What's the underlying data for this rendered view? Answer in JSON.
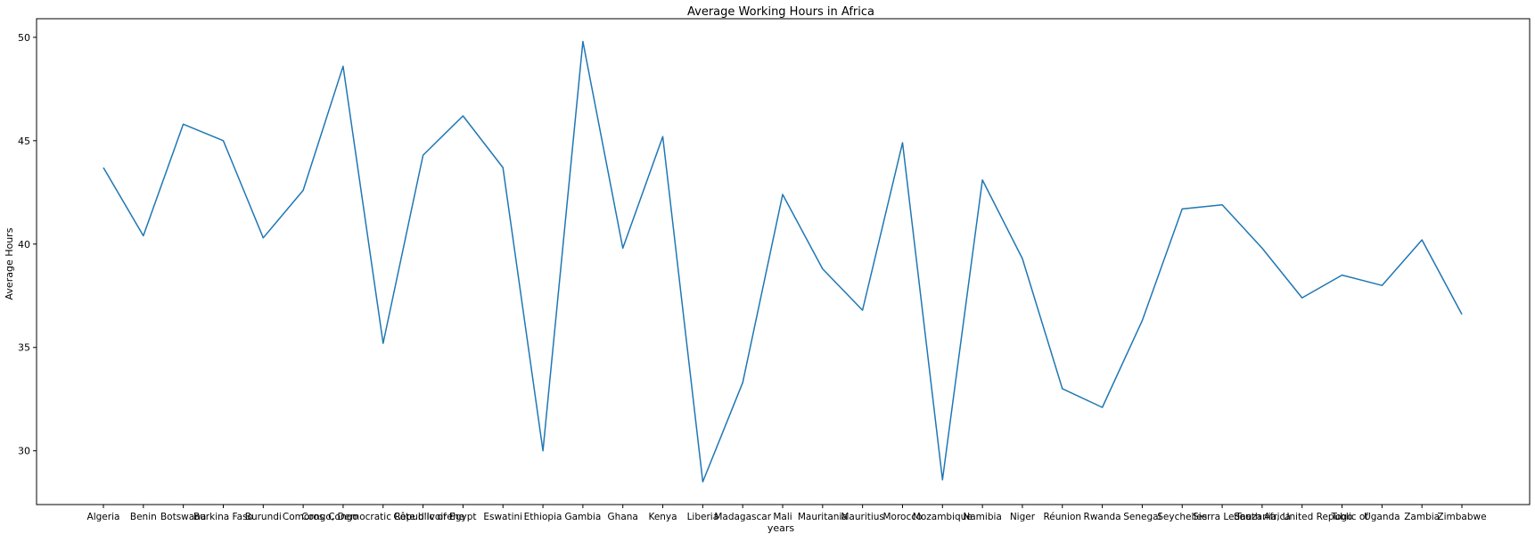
{
  "chart_data": {
    "type": "line",
    "title": "Average Working Hours in Africa",
    "xlabel": "years",
    "ylabel": "Average Hours",
    "categories": [
      "Algeria",
      "Benin",
      "Botswana",
      "Burkina Faso",
      "Burundi",
      "Comoros",
      "Congo",
      "Congo, Democratic Republic of the",
      "Côte d'Ivoire",
      "Egypt",
      "Eswatini",
      "Ethiopia",
      "Gambia",
      "Ghana",
      "Kenya",
      "Liberia",
      "Madagascar",
      "Mali",
      "Mauritania",
      "Mauritius",
      "Morocco",
      "Mozambique",
      "Namibia",
      "Niger",
      "Réunion",
      "Rwanda",
      "Senegal",
      "Seychelles",
      "Sierra Leone",
      "South Africa",
      "Tanzania, United Republic of",
      "Togo",
      "Uganda",
      "Zambia",
      "Zimbabwe"
    ],
    "series": [
      {
        "values": [
          43.7,
          40.4,
          45.8,
          45.0,
          40.3,
          42.6,
          48.6,
          35.2,
          44.3,
          46.2,
          43.7,
          30.0,
          49.8,
          39.8,
          45.2,
          28.5,
          33.3,
          42.4,
          38.8,
          36.8,
          44.9,
          28.6,
          43.1,
          39.3,
          33.0,
          32.1,
          36.3,
          41.7,
          41.9,
          39.8,
          37.4,
          38.5,
          38.0,
          40.2,
          36.6
        ],
        "color": "#1f77b4"
      }
    ],
    "y_ticks": [
      30,
      35,
      40,
      45,
      50
    ],
    "ylim": [
      27.4,
      50.9
    ],
    "grid": false,
    "legend": "none"
  }
}
